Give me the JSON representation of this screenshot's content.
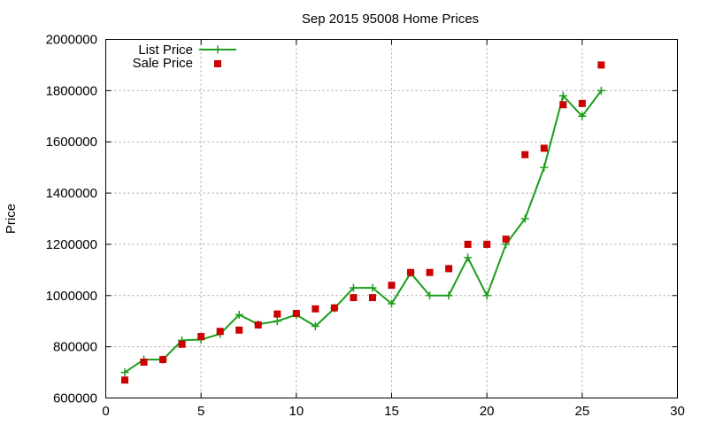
{
  "chart_data": {
    "type": "line",
    "title": "Sep 2015 95008 Home Prices",
    "xlabel": "",
    "ylabel": "Price",
    "xlim": [
      0,
      30
    ],
    "ylim": [
      600000,
      2000000
    ],
    "xticks": [
      0,
      5,
      10,
      15,
      20,
      25,
      30
    ],
    "yticks": [
      600000,
      800000,
      1000000,
      1200000,
      1400000,
      1600000,
      1800000,
      2000000
    ],
    "grid": true,
    "legend_position": "top-left",
    "series": [
      {
        "name": "List Price",
        "style": "line-cross",
        "color": "#1a9e1a",
        "x": [
          1,
          2,
          3,
          4,
          5,
          6,
          7,
          8,
          9,
          10,
          11,
          12,
          13,
          14,
          15,
          16,
          17,
          18,
          19,
          20,
          21,
          22,
          23,
          24,
          25,
          26
        ],
        "y": [
          700000,
          750000,
          750000,
          825000,
          828000,
          850000,
          925000,
          888000,
          900000,
          925000,
          880000,
          950000,
          1030000,
          1030000,
          968000,
          1088000,
          1000000,
          1000000,
          1148000,
          1000000,
          1200000,
          1300000,
          1500000,
          1780000,
          1700000,
          1800000
        ]
      },
      {
        "name": "Sale Price",
        "style": "square",
        "color": "#cc0000",
        "x": [
          1,
          2,
          3,
          4,
          5,
          6,
          7,
          8,
          9,
          10,
          11,
          12,
          13,
          14,
          15,
          16,
          17,
          18,
          19,
          20,
          21,
          22,
          23,
          24,
          25,
          26
        ],
        "y": [
          670000,
          740000,
          750000,
          810000,
          840000,
          860000,
          865000,
          885000,
          928000,
          930000,
          948000,
          952000,
          992000,
          992000,
          1040000,
          1090000,
          1090000,
          1105000,
          1200000,
          1200000,
          1220000,
          1550000,
          1575000,
          1745000,
          1750000,
          1900000
        ]
      }
    ]
  }
}
